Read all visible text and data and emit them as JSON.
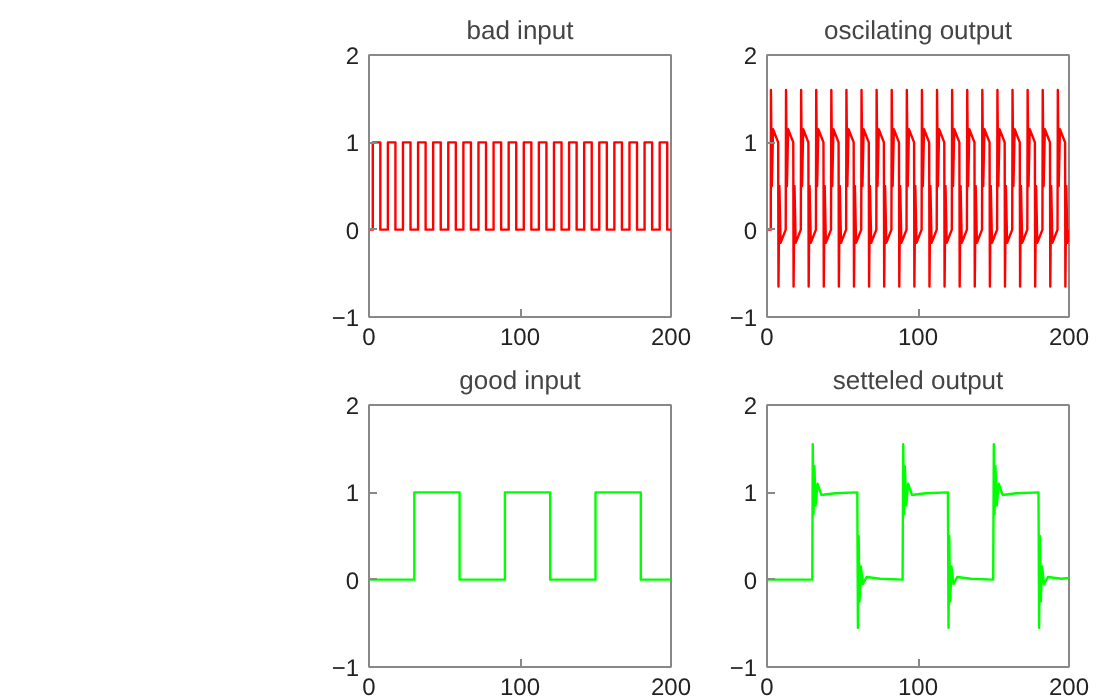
{
  "chart_data": [
    {
      "type": "line",
      "title": "bad input",
      "xlim": [
        0,
        200
      ],
      "ylim": [
        -1,
        2
      ],
      "xticks": [
        0,
        100,
        200
      ],
      "yticks": [
        -1,
        0,
        1,
        2
      ],
      "series": [
        {
          "color": "#ff0000",
          "x": [
            0,
            2.5,
            2.5,
            7.5,
            7.5,
            12.5,
            12.5,
            17.5,
            17.5,
            22.5,
            22.5,
            27.5,
            27.5,
            32.5,
            32.5,
            37.5,
            37.5,
            42.5,
            42.5,
            47.5,
            47.5,
            52.5,
            52.5,
            57.5,
            57.5,
            62.5,
            62.5,
            67.5,
            67.5,
            72.5,
            72.5,
            77.5,
            77.5,
            82.5,
            82.5,
            87.5,
            87.5,
            92.5,
            92.5,
            97.5,
            97.5,
            102.5,
            102.5,
            107.5,
            107.5,
            112.5,
            112.5,
            117.5,
            117.5,
            122.5,
            122.5,
            127.5,
            127.5,
            132.5,
            132.5,
            137.5,
            137.5,
            142.5,
            142.5,
            147.5,
            147.5,
            152.5,
            152.5,
            157.5,
            157.5,
            162.5,
            162.5,
            167.5,
            167.5,
            172.5,
            172.5,
            177.5,
            177.5,
            182.5,
            182.5,
            187.5,
            187.5,
            192.5,
            192.5,
            197.5,
            197.5,
            200
          ],
          "values": [
            0,
            0,
            1,
            1,
            0,
            0,
            1,
            1,
            0,
            0,
            1,
            1,
            0,
            0,
            1,
            1,
            0,
            0,
            1,
            1,
            0,
            0,
            1,
            1,
            0,
            0,
            1,
            1,
            0,
            0,
            1,
            1,
            0,
            0,
            1,
            1,
            0,
            0,
            1,
            1,
            0,
            0,
            1,
            1,
            0,
            0,
            1,
            1,
            0,
            0,
            1,
            1,
            0,
            0,
            1,
            1,
            0,
            0,
            1,
            1,
            0,
            0,
            1,
            1,
            0,
            0,
            1,
            1,
            0,
            0,
            1,
            1,
            0,
            0,
            1,
            1,
            0,
            0,
            1,
            1,
            0,
            0
          ]
        }
      ]
    },
    {
      "type": "line",
      "title": "oscilating output",
      "xlim": [
        0,
        200
      ],
      "ylim": [
        -1,
        2
      ],
      "xticks": [
        0,
        100,
        200
      ],
      "yticks": [
        -1,
        0,
        1,
        2
      ],
      "series": [
        {
          "color": "#ff0000",
          "x": [
            0,
            2.5,
            2.6,
            3.2,
            4.0,
            7.4,
            7.6,
            8.2,
            9.0,
            12.4,
            12.6,
            13.2,
            14.0,
            17.4,
            17.6,
            18.2,
            19.0,
            22.4,
            22.6,
            23.2,
            24.0,
            27.4,
            27.6,
            28.2,
            29.0,
            32.4,
            32.6,
            33.2,
            34.0,
            37.4,
            37.6,
            38.2,
            39.0,
            42.4,
            42.6,
            43.2,
            44.0,
            47.4,
            47.6,
            48.2,
            49.0,
            52.4,
            52.6,
            53.2,
            54.0,
            57.4,
            57.6,
            58.2,
            59.0,
            62.4,
            62.6,
            63.2,
            64.0,
            67.4,
            67.6,
            68.2,
            69.0,
            72.4,
            72.6,
            73.2,
            74.0,
            77.4,
            77.6,
            78.2,
            79.0,
            82.4,
            82.6,
            83.2,
            84.0,
            87.4,
            87.6,
            88.2,
            89.0,
            92.4,
            92.6,
            93.2,
            94.0,
            97.4,
            97.6,
            98.2,
            99.0,
            102.4,
            102.6,
            103.2,
            104.0,
            107.4,
            107.6,
            108.2,
            109.0,
            112.4,
            112.6,
            113.2,
            114.0,
            117.4,
            117.6,
            118.2,
            119.0,
            122.4,
            122.6,
            123.2,
            124.0,
            127.4,
            127.6,
            128.2,
            129.0,
            132.4,
            132.6,
            133.2,
            134.0,
            137.4,
            137.6,
            138.2,
            139.0,
            142.4,
            142.6,
            143.2,
            144.0,
            147.4,
            147.6,
            148.2,
            149.0,
            152.4,
            152.6,
            153.2,
            154.0,
            157.4,
            157.6,
            158.2,
            159.0,
            162.4,
            162.6,
            163.2,
            164.0,
            167.4,
            167.6,
            168.2,
            169.0,
            172.4,
            172.6,
            173.2,
            174.0,
            177.4,
            177.6,
            178.2,
            179.0,
            182.4,
            182.6,
            183.2,
            184.0,
            187.4,
            187.6,
            188.2,
            189.0,
            192.4,
            192.6,
            193.2,
            194.0,
            197.4,
            197.6,
            198.2,
            199.0,
            200
          ],
          "values": [
            0,
            0,
            1.6,
            0.5,
            1.15,
            1.0,
            -0.65,
            0.5,
            -0.15,
            0.0,
            1.6,
            0.5,
            1.15,
            1.0,
            -0.65,
            0.5,
            -0.15,
            0.0,
            1.6,
            0.5,
            1.15,
            1.0,
            -0.65,
            0.5,
            -0.15,
            0.0,
            1.6,
            0.5,
            1.15,
            1.0,
            -0.65,
            0.5,
            -0.15,
            0.0,
            1.6,
            0.5,
            1.15,
            1.0,
            -0.65,
            0.5,
            -0.15,
            0.0,
            1.6,
            0.5,
            1.15,
            1.0,
            -0.65,
            0.5,
            -0.15,
            0.0,
            1.6,
            0.5,
            1.15,
            1.0,
            -0.65,
            0.5,
            -0.15,
            0.0,
            1.6,
            0.5,
            1.15,
            1.0,
            -0.65,
            0.5,
            -0.15,
            0.0,
            1.6,
            0.5,
            1.15,
            1.0,
            -0.65,
            0.5,
            -0.15,
            0.0,
            1.6,
            0.5,
            1.15,
            1.0,
            -0.65,
            0.5,
            -0.15,
            0.0,
            1.6,
            0.5,
            1.15,
            1.0,
            -0.65,
            0.5,
            -0.15,
            0.0,
            1.6,
            0.5,
            1.15,
            1.0,
            -0.65,
            0.5,
            -0.15,
            0.0,
            1.6,
            0.5,
            1.15,
            1.0,
            -0.65,
            0.5,
            -0.15,
            0.0,
            1.6,
            0.5,
            1.15,
            1.0,
            -0.65,
            0.5,
            -0.15,
            0.0,
            1.6,
            0.5,
            1.15,
            1.0,
            -0.65,
            0.5,
            -0.15,
            0.0,
            1.6,
            0.5,
            1.15,
            1.0,
            -0.65,
            0.5,
            -0.15,
            0.0,
            1.6,
            0.5,
            1.15,
            1.0,
            -0.65,
            0.5,
            -0.15,
            0.0,
            1.6,
            0.5,
            1.15,
            1.0,
            -0.65,
            0.5,
            -0.15,
            0.0,
            1.6,
            0.5,
            1.15,
            1.0,
            -0.65,
            0.5,
            -0.15,
            0.0,
            1.6,
            0.5,
            1.15,
            1.0,
            -0.65,
            0.5,
            -0.15,
            0.0
          ]
        }
      ]
    },
    {
      "type": "line",
      "title": "good input",
      "xlim": [
        0,
        200
      ],
      "ylim": [
        -1,
        2
      ],
      "xticks": [
        0,
        100,
        200
      ],
      "yticks": [
        -1,
        0,
        1,
        2
      ],
      "series": [
        {
          "color": "#00ff00",
          "x": [
            0,
            30,
            30,
            60,
            60,
            90,
            90,
            120,
            120,
            150,
            150,
            180,
            180,
            200
          ],
          "values": [
            0,
            0,
            1,
            1,
            0,
            0,
            1,
            1,
            0,
            0,
            1,
            1,
            0,
            0
          ]
        }
      ]
    },
    {
      "type": "line",
      "title": "setteled output",
      "xlim": [
        0,
        200
      ],
      "ylim": [
        -1,
        2
      ],
      "xticks": [
        0,
        100,
        200
      ],
      "yticks": [
        -1,
        0,
        1,
        2
      ],
      "series": [
        {
          "color": "#00ff00",
          "x": [
            0,
            30,
            30.3,
            30.8,
            31.4,
            32.2,
            33.5,
            36,
            45,
            59.8,
            60.2,
            60.7,
            61.3,
            62.2,
            63.5,
            66,
            75,
            89.8,
            90.2,
            90.7,
            91.3,
            92.2,
            93.5,
            96,
            105,
            119.8,
            120.2,
            120.7,
            121.3,
            122.2,
            123.5,
            126,
            135,
            149.8,
            150.2,
            150.7,
            151.3,
            152.2,
            153.5,
            156,
            165,
            179.8,
            180.2,
            180.7,
            181.3,
            182.2,
            183.5,
            186,
            195,
            200
          ],
          "values": [
            0,
            0,
            1.55,
            0.75,
            1.3,
            0.85,
            1.1,
            0.97,
            0.99,
            1.0,
            -0.55,
            0.5,
            -0.25,
            0.15,
            -0.05,
            0.03,
            0.01,
            0.0,
            1.55,
            0.75,
            1.3,
            0.85,
            1.1,
            0.97,
            0.99,
            1.0,
            -0.55,
            0.5,
            -0.25,
            0.15,
            -0.05,
            0.03,
            0.01,
            0.0,
            1.55,
            0.75,
            1.3,
            0.85,
            1.1,
            0.97,
            0.99,
            1.0,
            -0.55,
            0.5,
            -0.25,
            0.15,
            -0.05,
            0.03,
            0.01,
            0.02
          ]
        }
      ]
    }
  ]
}
